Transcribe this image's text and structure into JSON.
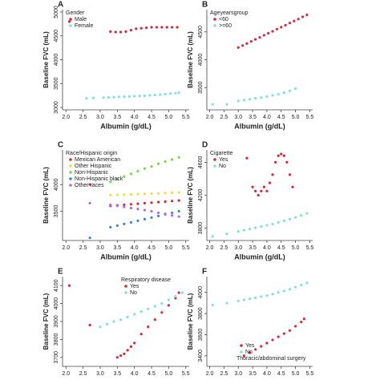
{
  "chart_data": [
    {
      "type": "scatter",
      "panel": "A",
      "xlabel": "Albumin (g/dL)",
      "ylabel": "Baseline FVC (mL)",
      "legend_title": "Gender",
      "legend": "top-left",
      "xlim": [
        1.9,
        5.6
      ],
      "xticks": [
        {
          "value": 2,
          "label": "2.0"
        },
        {
          "value": 2.5,
          "label": "2.5"
        },
        {
          "value": 3,
          "label": "3.0"
        },
        {
          "value": 3.5,
          "label": "3.5"
        },
        {
          "value": 4,
          "label": "4.0"
        },
        {
          "value": 4.5,
          "label": "4.5"
        },
        {
          "value": 5,
          "label": "5.0"
        },
        {
          "value": 5.5,
          "label": "5.5"
        }
      ],
      "ylim": [
        2950,
        5050
      ],
      "yticks": [
        3000,
        3500,
        4000,
        4500,
        5000
      ],
      "series": [
        {
          "name": "Male",
          "color": "#e0243a",
          "x": [
            2.1,
            3.3,
            3.45,
            3.6,
            3.75,
            3.9,
            4.05,
            4.2,
            4.35,
            4.5,
            4.65,
            4.8,
            4.95,
            5.1,
            5.25
          ],
          "values": [
            4800,
            4590,
            4580,
            4580,
            4590,
            4620,
            4650,
            4660,
            4670,
            4680,
            4680,
            4680,
            4680,
            4680,
            4680
          ]
        },
        {
          "name": "Female",
          "color": "#7fe3d8",
          "x": [
            2.6,
            2.8,
            3.1,
            3.25,
            3.4,
            3.55,
            3.7,
            3.85,
            4.0,
            4.15,
            4.3,
            4.45,
            4.6,
            4.75,
            4.9,
            5.05,
            5.2,
            5.3
          ],
          "values": [
            3190,
            3200,
            3205,
            3210,
            3215,
            3220,
            3225,
            3230,
            3235,
            3240,
            3245,
            3255,
            3260,
            3270,
            3280,
            3290,
            3300,
            3310
          ]
        }
      ]
    },
    {
      "type": "scatter",
      "panel": "B",
      "xlabel": "Albumin (g/dL)",
      "ylabel": "Baseline FVC (mL)",
      "legend_title": "Ageyearsgroup",
      "legend": "top-left",
      "xlim": [
        1.9,
        5.6
      ],
      "xticks": [
        {
          "value": 2,
          "label": "2.0"
        },
        {
          "value": 2.5,
          "label": "2.5"
        },
        {
          "value": 3,
          "label": "3.0"
        },
        {
          "value": 3.5,
          "label": "3.5"
        },
        {
          "value": 4,
          "label": "4.0"
        },
        {
          "value": 4.5,
          "label": "4.5"
        },
        {
          "value": 5,
          "label": "5.0"
        },
        {
          "value": 5.5,
          "label": "5.5"
        }
      ],
      "ylim": [
        3100,
        4900
      ],
      "yticks": [
        3500,
        4000,
        4500
      ],
      "series": [
        {
          "name": "<60",
          "color": "#e0243a",
          "x": [
            3.0,
            3.15,
            3.3,
            3.45,
            3.6,
            3.75,
            3.9,
            4.05,
            4.2,
            4.35,
            4.5,
            4.65,
            4.8,
            4.95,
            5.1,
            5.25,
            5.4
          ],
          "values": [
            4220,
            4255,
            4290,
            4330,
            4365,
            4400,
            4440,
            4475,
            4510,
            4550,
            4585,
            4620,
            4660,
            4695,
            4730,
            4770,
            4805
          ]
        },
        {
          "name": ">=60",
          "color": "#7fe3d8",
          "x": [
            2.1,
            2.6,
            3.0,
            3.2,
            3.4,
            3.6,
            3.8,
            4.0,
            4.2,
            4.4,
            4.6,
            4.8,
            5.0
          ],
          "values": [
            3200,
            3200,
            3260,
            3275,
            3290,
            3305,
            3320,
            3340,
            3360,
            3380,
            3410,
            3440,
            3480
          ]
        }
      ]
    },
    {
      "type": "scatter",
      "panel": "C",
      "xlabel": "Albumin (g/dL)",
      "ylabel": "Baseline FVC (mL)",
      "legend_title": "Race/Hispanic origin",
      "legend": "top-left",
      "xlim": [
        1.9,
        5.6
      ],
      "xticks": [
        {
          "value": 2,
          "label": "2.0"
        },
        {
          "value": 2.5,
          "label": "2.5"
        },
        {
          "value": 3,
          "label": "3.0"
        },
        {
          "value": 3.5,
          "label": "3.5"
        },
        {
          "value": 4,
          "label": "4.0"
        },
        {
          "value": 4.5,
          "label": "4.5"
        },
        {
          "value": 5,
          "label": "5.0"
        },
        {
          "value": 5.5,
          "label": "5.5"
        }
      ],
      "ylim": [
        2950,
        4650
      ],
      "yticks": [
        3500,
        4000
      ],
      "series": [
        {
          "name": "Mexican American",
          "color": "#e0243a",
          "x": [
            2.7,
            3.3,
            3.5,
            3.7,
            3.9,
            4.1,
            4.3,
            4.5,
            4.7,
            4.9,
            5.1,
            5.3
          ],
          "values": [
            4000,
            3600,
            3610,
            3620,
            3630,
            3640,
            3650,
            3660,
            3670,
            3680,
            3690,
            3700
          ]
        },
        {
          "name": "Other Hispanic",
          "color": "#e8e23a",
          "x": [
            3.3,
            3.5,
            3.7,
            3.9,
            4.1,
            4.3,
            4.5,
            4.7,
            4.9,
            5.1,
            5.3
          ],
          "values": [
            3800,
            3805,
            3810,
            3815,
            3820,
            3825,
            3830,
            3835,
            3840,
            3845,
            3850
          ]
        },
        {
          "name": "Non-Hispanic",
          "color": "#7cd64a",
          "x": [
            3.3,
            3.5,
            3.7,
            3.9,
            4.1,
            4.3,
            4.5,
            4.7,
            4.9,
            5.1,
            5.3
          ],
          "values": [
            4050,
            4100,
            4150,
            4200,
            4250,
            4300,
            4340,
            4390,
            4430,
            4470,
            4510
          ]
        },
        {
          "name": "Non-Hispanic black",
          "color": "#3b86d6",
          "x": [
            2.7,
            3.3,
            3.5,
            3.7,
            3.9,
            4.1,
            4.3,
            4.5,
            4.7,
            4.9,
            5.1,
            5.3
          ],
          "values": [
            3000,
            3200,
            3230,
            3260,
            3290,
            3320,
            3350,
            3380,
            3410,
            3440,
            3470,
            3500
          ]
        },
        {
          "name": "Other races",
          "color": "#b86ad6",
          "x": [
            2.7,
            3.3,
            3.5,
            3.7,
            3.9,
            4.1,
            4.3,
            4.5,
            4.7,
            4.9,
            5.1,
            5.3
          ],
          "values": [
            3650,
            3620,
            3600,
            3580,
            3560,
            3540,
            3520,
            3500,
            3470,
            3450,
            3420,
            3400
          ]
        }
      ]
    },
    {
      "type": "scatter",
      "panel": "D",
      "xlabel": "Albumin (g/dL)",
      "ylabel": "Baseline FVC (mL)",
      "legend_title": "Cigarette",
      "legend": "top-left",
      "xlim": [
        1.9,
        5.6
      ],
      "xticks": [
        {
          "value": 2,
          "label": "2.0"
        },
        {
          "value": 2.5,
          "label": "2.5"
        },
        {
          "value": 3,
          "label": "3.0"
        },
        {
          "value": 3.5,
          "label": "3.5"
        },
        {
          "value": 4,
          "label": "4.0"
        },
        {
          "value": 4.5,
          "label": "4.5"
        },
        {
          "value": 5,
          "label": "5.0"
        },
        {
          "value": 5.5,
          "label": "5.5"
        }
      ],
      "ylim": [
        3650,
        4750
      ],
      "yticks": [
        3800,
        4200,
        4600
      ],
      "series": [
        {
          "name": "Yes",
          "color": "#e0243a",
          "x": [
            3.3,
            3.5,
            3.6,
            3.7,
            3.8,
            3.9,
            4.0,
            4.1,
            4.2,
            4.3,
            4.4,
            4.5,
            4.6,
            4.7,
            4.8,
            4.9
          ],
          "values": [
            4650,
            4300,
            4250,
            4200,
            4250,
            4300,
            4250,
            4350,
            4450,
            4600,
            4680,
            4700,
            4680,
            4600,
            4450,
            4300
          ]
        },
        {
          "name": "No",
          "color": "#7fe3d8",
          "x": [
            2.1,
            2.6,
            3.0,
            3.2,
            3.4,
            3.6,
            3.8,
            4.0,
            4.2,
            4.4,
            4.6,
            4.8,
            5.0,
            5.2,
            5.4
          ],
          "values": [
            3700,
            3730,
            3760,
            3775,
            3790,
            3805,
            3820,
            3835,
            3850,
            3870,
            3890,
            3910,
            3930,
            3955,
            3980
          ]
        }
      ]
    },
    {
      "type": "scatter",
      "panel": "E",
      "xlabel": "Albumin (g/dL)",
      "ylabel": "Baseline FVC (mL)",
      "legend_title": "Respiratory disease",
      "legend": "top-right",
      "xlim": [
        1.9,
        5.6
      ],
      "xticks": [
        {
          "value": 2,
          "label": "2.0"
        },
        {
          "value": 2.5,
          "label": "2.5"
        },
        {
          "value": 3,
          "label": "3.0"
        },
        {
          "value": 3.5,
          "label": "3.5"
        },
        {
          "value": 4,
          "label": "4.0"
        },
        {
          "value": 4.5,
          "label": "4.5"
        },
        {
          "value": 5,
          "label": "5.0"
        },
        {
          "value": 5.5,
          "label": "5.5"
        }
      ],
      "ylim": [
        3650,
        4150
      ],
      "yticks": [
        3700,
        3800,
        3900,
        4000,
        4100
      ],
      "series": [
        {
          "name": "Yes",
          "color": "#e0243a",
          "x": [
            2.1,
            2.7,
            3.5,
            3.6,
            3.7,
            3.8,
            3.9,
            4.0,
            4.2,
            4.4,
            4.6,
            4.8,
            5.0,
            5.2,
            5.3
          ],
          "values": [
            4100,
            3880,
            3700,
            3710,
            3720,
            3740,
            3760,
            3780,
            3830,
            3870,
            3910,
            3950,
            3990,
            4030,
            4060
          ]
        },
        {
          "name": "No",
          "color": "#7fe3d8",
          "x": [
            3.0,
            3.2,
            3.4,
            3.6,
            3.8,
            4.0,
            4.2,
            4.4,
            4.6,
            4.8,
            5.0,
            5.2,
            5.4
          ],
          "values": [
            3870,
            3885,
            3900,
            3910,
            3925,
            3940,
            3955,
            3970,
            3985,
            4000,
            4020,
            4040,
            4060
          ]
        }
      ]
    },
    {
      "type": "scatter",
      "panel": "F",
      "xlabel": "Albumin (g/dL)",
      "ylabel": "Baseline FVC (mL)",
      "legend_title": "Thoracic/abdominal surgery",
      "legend": "bottom-right",
      "xlim": [
        1.9,
        5.6
      ],
      "xticks": [
        {
          "value": 2,
          "label": "2.0"
        },
        {
          "value": 2.5,
          "label": "2.5"
        },
        {
          "value": 3,
          "label": "3.0"
        },
        {
          "value": 3.5,
          "label": "3.5"
        },
        {
          "value": 4,
          "label": "4.0"
        },
        {
          "value": 4.5,
          "label": "4.5"
        },
        {
          "value": 5,
          "label": "5.0"
        },
        {
          "value": 5.5,
          "label": "5.5"
        }
      ],
      "ylim": [
        3300,
        4150
      ],
      "yticks": [
        3400,
        3600,
        3800,
        4000
      ],
      "series": [
        {
          "name": "Yes",
          "color": "#e0243a",
          "x": [
            3.2,
            3.4,
            3.6,
            3.8,
            4.0,
            4.2,
            4.4,
            4.6,
            4.8,
            5.0,
            5.2,
            5.3
          ],
          "values": [
            3400,
            3430,
            3460,
            3490,
            3520,
            3550,
            3580,
            3610,
            3640,
            3680,
            3720,
            3750
          ]
        },
        {
          "name": "No",
          "color": "#7fe3d8",
          "x": [
            2.1,
            2.6,
            3.0,
            3.2,
            3.4,
            3.6,
            3.8,
            4.0,
            4.2,
            4.4,
            4.6,
            4.8,
            5.0,
            5.2,
            5.4
          ],
          "values": [
            3880,
            3900,
            3920,
            3930,
            3940,
            3950,
            3960,
            3970,
            3985,
            4000,
            4015,
            4030,
            4050,
            4070,
            4090
          ]
        }
      ]
    }
  ]
}
